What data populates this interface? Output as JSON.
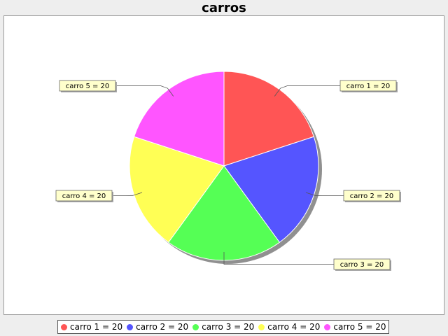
{
  "chart_data": {
    "type": "pie",
    "title": "carros",
    "slices": [
      {
        "label": "carro 1",
        "value": 20,
        "color": "#ff5555",
        "callout": "carro 1 = 20",
        "legend": "carro 1 = 20"
      },
      {
        "label": "carro 2",
        "value": 20,
        "color": "#5555ff",
        "callout": "carro 2 = 20",
        "legend": "carro 2 = 20"
      },
      {
        "label": "carro 3",
        "value": 20,
        "color": "#55ff55",
        "callout": "carro 3 = 20",
        "legend": "carro 3 = 20"
      },
      {
        "label": "carro 4",
        "value": 20,
        "color": "#ffff55",
        "callout": "carro 4 = 20",
        "legend": "carro 4 = 20"
      },
      {
        "label": "carro 5",
        "value": 20,
        "color": "#ff55ff",
        "callout": "carro 5 = 20",
        "legend": "carro 5 = 20"
      }
    ],
    "legend_position": "bottom",
    "label_style": "callout-boxes"
  },
  "colors": {
    "background": "#eeeeee",
    "plot_background": "#ffffff",
    "callout_background": "#ffffcc"
  }
}
